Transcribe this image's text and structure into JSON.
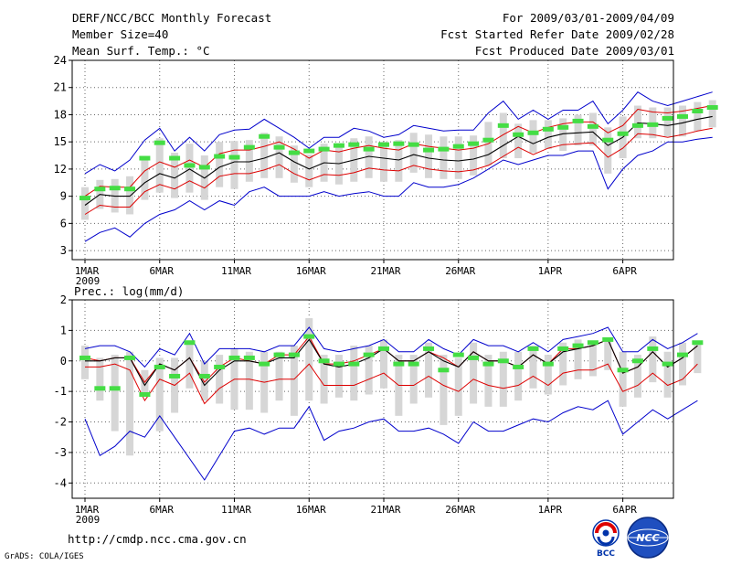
{
  "header": {
    "title": "DERF/NCC/BCC Monthly Forecast",
    "member_size": "Member Size=40",
    "variable_top": "Mean Surf. Temp.: °C",
    "period": "For 2009/03/01-2009/04/09",
    "fcst_started": "Fcst Started Refer Date 2009/02/28",
    "fcst_produced": "Fcst Produced Date 2009/03/01"
  },
  "footer": {
    "url": "http://cmdp.ncc.cma.gov.cn",
    "grads": "GrADS: COLA/IGES",
    "logo_bcc": "BCC",
    "logo_ncc": "NCC"
  },
  "colors": {
    "ensemble_mean": "#000000",
    "spread_bounds": "#dd0000",
    "extremes": "#0000cc",
    "box_range": "#d6d6d6",
    "observed_marker": "#44dd44"
  },
  "chart_data": [
    {
      "type": "line",
      "title": "Mean Surf. Temp.: °C",
      "x_day_start": 1,
      "x_tick_days": [
        1,
        6,
        11,
        16,
        21,
        26,
        32,
        37
      ],
      "x_tick_labels": [
        "1MAR",
        "6MAR",
        "11MAR",
        "16MAR",
        "21MAR",
        "26MAR",
        "1APR",
        "6APR"
      ],
      "x_year_label": "2009",
      "ylim": [
        2,
        24
      ],
      "y_ticks": [
        3,
        6,
        9,
        12,
        15,
        18,
        21,
        24
      ],
      "series": [
        {
          "name": "ensemble_mean",
          "values": [
            8.0,
            9.2,
            9.0,
            9.0,
            10.5,
            11.5,
            11.0,
            12.0,
            11.0,
            12.2,
            12.8,
            12.8,
            13.2,
            13.8,
            12.8,
            12.0,
            12.7,
            12.6,
            13.0,
            13.4,
            13.2,
            13.0,
            13.6,
            13.2,
            13.0,
            12.9,
            13.1,
            13.6,
            14.6,
            15.6,
            14.8,
            15.5,
            15.9,
            16.0,
            16.1,
            14.6,
            15.5,
            17.1,
            17.0,
            16.8,
            17.1,
            17.5,
            17.8
          ]
        },
        {
          "name": "upper_bound",
          "values": [
            9.0,
            10.1,
            10.0,
            10.0,
            11.8,
            12.8,
            12.2,
            13.0,
            12.2,
            13.7,
            14.1,
            14.1,
            14.5,
            15.0,
            14.2,
            13.2,
            14.1,
            13.9,
            14.3,
            14.6,
            14.3,
            14.1,
            14.8,
            14.5,
            14.3,
            14.1,
            14.3,
            14.8,
            15.8,
            16.7,
            16.0,
            16.6,
            17.0,
            17.2,
            17.2,
            16.0,
            16.8,
            18.6,
            18.3,
            18.2,
            18.4,
            18.7,
            19.0
          ]
        },
        {
          "name": "lower_bound",
          "values": [
            7.0,
            8.0,
            7.8,
            7.8,
            9.5,
            10.3,
            9.8,
            10.7,
            9.9,
            11.2,
            11.5,
            11.5,
            11.9,
            12.5,
            11.5,
            10.8,
            11.4,
            11.3,
            11.6,
            12.1,
            11.9,
            11.8,
            12.4,
            12.0,
            11.8,
            11.7,
            11.9,
            12.4,
            13.4,
            14.4,
            13.6,
            14.3,
            14.7,
            14.8,
            14.9,
            13.3,
            14.3,
            15.9,
            15.8,
            15.5,
            15.8,
            16.2,
            16.5
          ]
        },
        {
          "name": "maximum",
          "values": [
            11.5,
            12.5,
            11.8,
            13.0,
            15.2,
            16.5,
            14.0,
            15.5,
            14.0,
            15.8,
            16.3,
            16.4,
            17.5,
            16.5,
            15.5,
            14.3,
            15.5,
            15.5,
            16.5,
            16.2,
            15.5,
            15.8,
            16.8,
            16.5,
            16.2,
            16.3,
            16.3,
            18.2,
            19.5,
            17.5,
            18.5,
            17.5,
            18.5,
            18.5,
            19.5,
            17.0,
            18.5,
            20.5,
            19.5,
            19.0,
            19.5,
            20.0,
            20.5
          ]
        },
        {
          "name": "minimum",
          "values": [
            4.0,
            5.0,
            5.5,
            4.5,
            6.0,
            7.0,
            7.5,
            8.5,
            7.5,
            8.5,
            8.0,
            9.5,
            10.0,
            9.0,
            9.0,
            9.0,
            9.5,
            9.0,
            9.3,
            9.5,
            9.0,
            9.0,
            10.5,
            10.0,
            10.0,
            10.3,
            11.0,
            12.0,
            13.0,
            12.5,
            13.0,
            13.5,
            13.5,
            14.0,
            14.0,
            9.8,
            12.0,
            13.5,
            14.0,
            15.0,
            15.0,
            15.3,
            15.5
          ]
        },
        {
          "name": "box_high",
          "values": [
            10.0,
            10.8,
            10.9,
            11.2,
            13.2,
            15.4,
            13.8,
            14.8,
            13.5,
            15.0,
            15.1,
            15.2,
            16.0,
            15.6,
            14.6,
            13.6,
            14.8,
            14.7,
            15.4,
            15.6,
            15.0,
            15.2,
            16.0,
            15.8,
            15.6,
            15.6,
            15.7,
            17.2,
            18.2,
            17.0,
            17.4,
            17.4,
            17.6,
            18.0,
            18.2,
            16.6,
            17.8,
            19.0,
            18.8,
            18.8,
            19.0,
            19.4,
            19.6
          ]
        },
        {
          "name": "box_low",
          "values": [
            6.4,
            7.6,
            7.2,
            7.0,
            8.6,
            9.4,
            8.8,
            9.4,
            8.6,
            10.0,
            9.8,
            10.6,
            11.0,
            11.0,
            10.5,
            10.0,
            10.6,
            10.3,
            10.6,
            11.0,
            10.6,
            10.6,
            11.6,
            11.0,
            10.9,
            10.9,
            11.3,
            12.4,
            13.2,
            13.2,
            13.8,
            14.2,
            14.0,
            14.6,
            14.6,
            11.5,
            13.2,
            15.4,
            15.4,
            15.6,
            15.6,
            16.2,
            16.6
          ]
        },
        {
          "name": "observed",
          "values": [
            8.8,
            9.8,
            9.9,
            9.8,
            13.2,
            14.9,
            13.2,
            12.4,
            12.2,
            13.4,
            13.3,
            14.4,
            15.6,
            14.4,
            13.8,
            14.0,
            14.2,
            14.6,
            14.7,
            14.2,
            14.7,
            14.8,
            14.7,
            14.1,
            14.2,
            14.5,
            14.8,
            15.2,
            16.8,
            15.8,
            16.0,
            16.4,
            16.6,
            17.3,
            16.7,
            15.2,
            15.9,
            16.8,
            16.9,
            17.6,
            17.8,
            18.4,
            18.8
          ]
        }
      ]
    },
    {
      "type": "line",
      "title": "Prec.: log(mm/d)",
      "x_day_start": 1,
      "x_tick_days": [
        1,
        6,
        11,
        16,
        21,
        26,
        32,
        37
      ],
      "x_tick_labels": [
        "1MAR",
        "6MAR",
        "11MAR",
        "16MAR",
        "21MAR",
        "26MAR",
        "1APR",
        "6APR"
      ],
      "x_year_label": "2009",
      "ylim": [
        -4.5,
        2
      ],
      "y_ticks": [
        -4,
        -3,
        -2,
        -1,
        0,
        1,
        2
      ],
      "series": [
        {
          "name": "ensemble_mean",
          "values": [
            0.0,
            0.0,
            0.1,
            0.1,
            -0.8,
            -0.1,
            -0.3,
            0.1,
            -0.8,
            -0.3,
            0.0,
            0.0,
            -0.1,
            0.1,
            0.1,
            0.7,
            -0.1,
            -0.2,
            -0.1,
            0.1,
            0.4,
            0.0,
            0.0,
            0.3,
            0.0,
            -0.2,
            0.3,
            0.0,
            0.0,
            -0.2,
            0.2,
            -0.1,
            0.3,
            0.4,
            0.5,
            0.7,
            -0.4,
            -0.2,
            0.3,
            -0.2,
            0.1,
            0.5
          ]
        },
        {
          "name": "upper_bound",
          "values": [
            0.1,
            0.0,
            0.1,
            0.1,
            -0.7,
            -0.1,
            -0.3,
            0.1,
            -0.7,
            -0.2,
            0.1,
            0.0,
            -0.1,
            0.2,
            0.2,
            0.8,
            -0.1,
            -0.1,
            0.0,
            0.2,
            0.4,
            0.0,
            0.0,
            0.3,
            0.1,
            -0.2,
            0.3,
            0.0,
            0.0,
            -0.2,
            0.2,
            -0.1,
            0.4,
            0.4,
            0.5,
            0.7,
            -0.4,
            -0.2,
            0.3,
            -0.2,
            0.1,
            0.5
          ]
        },
        {
          "name": "lower_bound",
          "values": [
            -0.2,
            -0.2,
            -0.1,
            -0.3,
            -1.3,
            -0.6,
            -0.8,
            -0.4,
            -1.4,
            -0.9,
            -0.6,
            -0.6,
            -0.7,
            -0.6,
            -0.6,
            -0.1,
            -0.8,
            -0.8,
            -0.8,
            -0.6,
            -0.4,
            -0.8,
            -0.8,
            -0.5,
            -0.8,
            -1.0,
            -0.6,
            -0.8,
            -0.9,
            -0.8,
            -0.5,
            -0.8,
            -0.4,
            -0.3,
            -0.3,
            -0.1,
            -1.0,
            -0.8,
            -0.4,
            -0.8,
            -0.6,
            -0.1
          ]
        },
        {
          "name": "maximum",
          "values": [
            0.4,
            0.5,
            0.5,
            0.3,
            -0.2,
            0.4,
            0.2,
            0.9,
            -0.1,
            0.4,
            0.4,
            0.4,
            0.3,
            0.5,
            0.5,
            1.1,
            0.4,
            0.3,
            0.4,
            0.5,
            0.7,
            0.3,
            0.3,
            0.7,
            0.4,
            0.2,
            0.7,
            0.5,
            0.5,
            0.3,
            0.6,
            0.3,
            0.7,
            0.8,
            0.9,
            1.1,
            0.3,
            0.3,
            0.7,
            0.4,
            0.6,
            0.9
          ]
        },
        {
          "name": "minimum",
          "values": [
            -1.9,
            -3.1,
            -2.8,
            -2.3,
            -2.5,
            -1.8,
            -2.5,
            -3.2,
            -3.9,
            -3.1,
            -2.3,
            -2.2,
            -2.4,
            -2.2,
            -2.2,
            -1.5,
            -2.6,
            -2.3,
            -2.2,
            -2.0,
            -1.9,
            -2.3,
            -2.3,
            -2.2,
            -2.4,
            -2.7,
            -2.0,
            -2.3,
            -2.3,
            -2.1,
            -1.9,
            -2.0,
            -1.7,
            -1.5,
            -1.6,
            -1.3,
            -2.4,
            -2.0,
            -1.6,
            -1.9,
            -1.6,
            -1.3
          ]
        },
        {
          "name": "box_high",
          "values": [
            0.5,
            0.1,
            0.2,
            0.3,
            -0.3,
            0.1,
            0.1,
            0.6,
            0.0,
            0.2,
            0.4,
            0.3,
            0.3,
            0.3,
            0.5,
            1.4,
            0.2,
            0.2,
            0.5,
            0.5,
            0.7,
            0.2,
            0.2,
            0.6,
            0.2,
            0.1,
            0.6,
            0.2,
            0.3,
            0.3,
            0.5,
            0.2,
            0.6,
            0.7,
            0.6,
            0.7,
            0.3,
            0.2,
            0.8,
            0.3,
            0.6,
            0.6
          ]
        },
        {
          "name": "box_low",
          "values": [
            -0.6,
            -1.3,
            -2.3,
            -3.1,
            -1.1,
            -2.3,
            -1.7,
            -0.9,
            -1.3,
            -1.4,
            -1.6,
            -1.6,
            -1.7,
            -1.3,
            -1.8,
            -1.3,
            -1.4,
            -1.2,
            -1.3,
            -1.1,
            -0.9,
            -1.8,
            -1.4,
            -1.2,
            -2.1,
            -1.8,
            -1.4,
            -1.5,
            -1.5,
            -1.3,
            -0.9,
            -1.1,
            -0.8,
            -0.6,
            -0.5,
            -0.3,
            -1.5,
            -1.2,
            -0.7,
            -1.2,
            -0.8,
            -0.4
          ]
        },
        {
          "name": "observed",
          "values": [
            0.1,
            -0.9,
            -0.9,
            0.1,
            -1.1,
            -0.2,
            -0.5,
            0.6,
            -0.5,
            -0.2,
            0.1,
            0.1,
            -0.1,
            0.2,
            0.2,
            0.8,
            0.0,
            -0.1,
            -0.1,
            0.2,
            0.4,
            -0.1,
            -0.1,
            0.4,
            -0.3,
            0.2,
            0.1,
            -0.1,
            0.0,
            -0.2,
            0.4,
            -0.1,
            0.4,
            0.5,
            0.6,
            0.7,
            -0.3,
            0.0,
            0.4,
            -0.1,
            0.2,
            0.6
          ]
        }
      ]
    }
  ]
}
